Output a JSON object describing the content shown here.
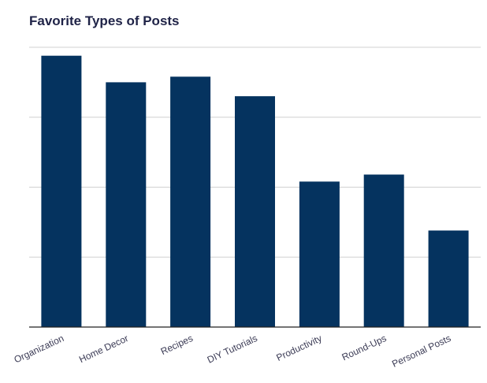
{
  "chart_data": {
    "type": "bar",
    "title": "Favorite Types of Posts",
    "xlabel": "",
    "ylabel": "",
    "categories": [
      "Organization",
      "Home Decor",
      "Recipes",
      "DIY Tutorials",
      "Productivity",
      "Round-Ups",
      "Personal Posts"
    ],
    "values": [
      97,
      87.5,
      89.5,
      82.5,
      52,
      54.5,
      34.5
    ],
    "ylim": [
      0,
      100
    ],
    "y_gridlines": [
      0,
      25,
      50,
      75,
      100
    ],
    "y_tick_labels_shown": false,
    "grid": true,
    "legend": "none",
    "bar_color": "#05335f",
    "grid_color": "#d0d0d0"
  }
}
